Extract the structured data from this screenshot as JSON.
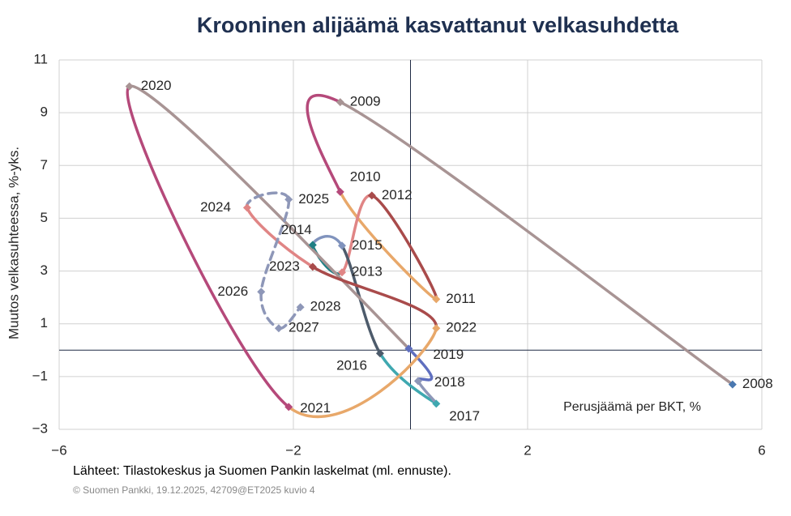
{
  "chart_data": {
    "type": "connected-scatter",
    "title": "Krooninen alijäämä kasvattanut velkasuhdetta",
    "ylabel": "Muutos velkasuhteessa, %-yks.",
    "xlabel": "Perusjäämä per BKT, %",
    "source": "Lähteet: Tilastokeskus ja Suomen Pankin laskelmat (ml. ennuste).",
    "footer": "© Suomen Pankki, 19.12.2025, 42709@ET2025  kuvio 4",
    "xlim": [
      -6,
      6
    ],
    "ylim": [
      -3,
      11
    ],
    "xticks": [
      {
        "value": -6,
        "label": "−6"
      },
      {
        "value": -2,
        "label": "−2"
      },
      2,
      6
    ],
    "yticks": [
      {
        "value": -3,
        "label": "−3"
      },
      {
        "value": -1,
        "label": "−1"
      },
      1,
      3,
      5,
      7,
      9,
      11
    ],
    "grid": true,
    "zero_lines": true,
    "series": [
      {
        "labels": [
          "2008",
          "2009",
          "2010",
          "2011",
          "2012",
          "2013",
          "2014",
          "2015",
          "2016",
          "2017",
          "2018",
          "2019",
          "2020",
          "2021",
          "2022",
          "2023",
          "2024",
          "2025",
          "2026",
          "2027",
          "2028"
        ],
        "x": [
          5.5,
          -1.2,
          -1.2,
          0.44,
          -0.66,
          -1.17,
          -1.67,
          -1.17,
          -0.52,
          0.44,
          0.13,
          -0.03,
          -4.8,
          -2.08,
          0.44,
          -1.67,
          -2.79,
          -2.08,
          -2.55,
          -2.25,
          -1.88
        ],
        "y": [
          -1.3,
          9.4,
          6.0,
          1.93,
          5.86,
          2.95,
          3.99,
          3.96,
          -0.12,
          -2.03,
          -1.17,
          0.06,
          10.0,
          -2.15,
          0.83,
          3.16,
          5.4,
          5.71,
          2.21,
          0.83,
          1.63
        ],
        "point_colors": [
          "#4a78b0",
          "#a89494",
          "#b5497a",
          "#e8a86a",
          "#a94b4b",
          "#e08585",
          "#1f7f84",
          "#8093bd",
          "#4d5b6b",
          "#3fa8b0",
          "#8e97b8",
          "#5f6fbf",
          "#a89494",
          "#b5497a",
          "#e8a86a",
          "#a94b4b",
          "#e08585",
          "#8e97b8",
          "#8e97b8",
          "#8e97b8",
          "#8e97b8"
        ],
        "segment_colors": [
          "#a89494",
          "#b5497a",
          "#e8a86a",
          "#a94b4b",
          "#e08585",
          "#1f7f84",
          "#8093bd",
          "#4d5b6b",
          "#3fa8b0",
          "#8e97b8",
          "#5f6fbf",
          "#a89494",
          "#b5497a",
          "#e8a86a",
          "#a94b4b",
          "#e08585",
          "#8e97b8",
          "#8e97b8",
          "#8e97b8",
          "#8e97b8"
        ],
        "segment_styles": [
          "solid",
          "solid",
          "solid",
          "solid",
          "solid",
          "solid",
          "solid",
          "solid",
          "solid",
          "solid",
          "solid",
          "solid",
          "solid",
          "solid",
          "solid",
          "solid",
          "dashed",
          "dashed",
          "dashed",
          "dashed"
        ]
      }
    ]
  }
}
